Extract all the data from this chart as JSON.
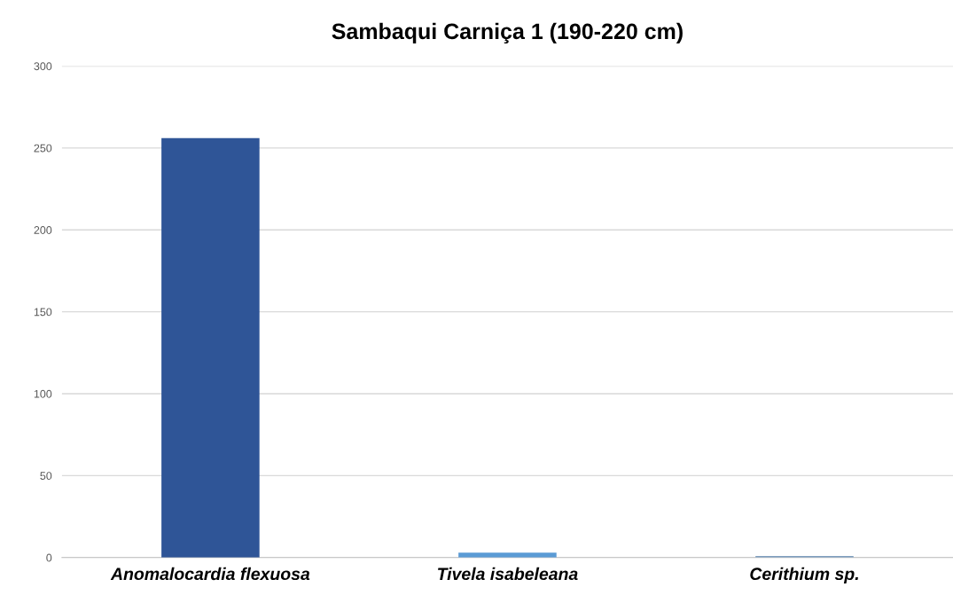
{
  "chart_data": {
    "type": "bar",
    "title": "Sambaqui Carniça 1 (190-220 cm)",
    "categories": [
      "Anomalocardia flexuosa",
      "Tivela isabeleana",
      "Cerithium sp."
    ],
    "values": [
      256,
      3,
      1
    ],
    "colors": [
      "#2f5597",
      "#5b9bd5",
      "#7f9fbf"
    ],
    "ylim": [
      0,
      300
    ],
    "yticks": [
      0,
      50,
      100,
      150,
      200,
      250,
      300
    ],
    "grid": "y"
  }
}
